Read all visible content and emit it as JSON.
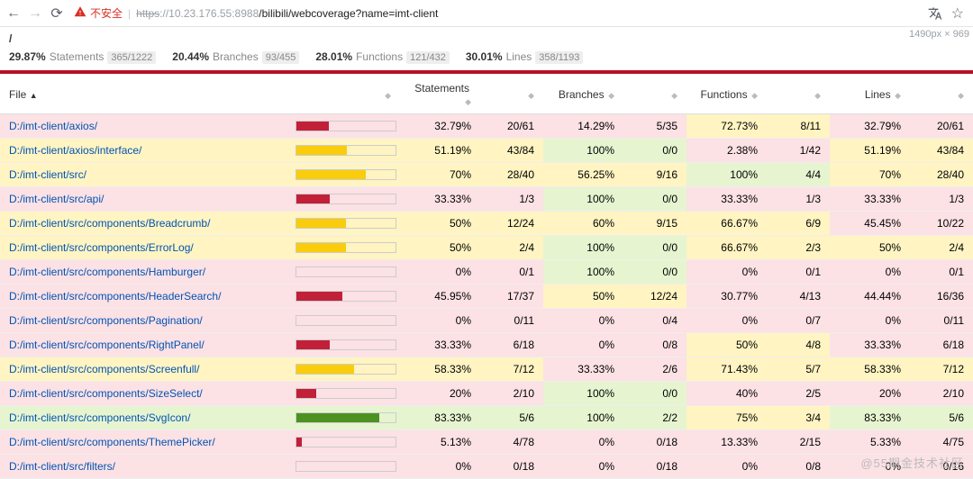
{
  "browser": {
    "warn_label": "不安全",
    "url_strike": "https",
    "url_host": "://10.23.176.55:8988",
    "url_path": "/bilibili/webcoverage?name=imt-client",
    "dims": "1490px × 969"
  },
  "crumb": "/",
  "summary": [
    {
      "pct": "29.87%",
      "label": "Statements",
      "frac": "365/1222"
    },
    {
      "pct": "20.44%",
      "label": "Branches",
      "frac": "93/455"
    },
    {
      "pct": "28.01%",
      "label": "Functions",
      "frac": "121/432"
    },
    {
      "pct": "30.01%",
      "label": "Lines",
      "frac": "358/1193"
    }
  ],
  "headers": {
    "file": "File",
    "st": "Statements",
    "br": "Branches",
    "fn": "Functions",
    "ln": "Lines"
  },
  "thresholds": {
    "med": 50,
    "high": 80
  },
  "rows": [
    {
      "file": "D:/imt-client/axios/",
      "st_pct": 32.79,
      "st": "20/61",
      "br_pct": 14.29,
      "br": "5/35",
      "fn_pct": 72.73,
      "fn": "8/11",
      "ln_pct": 32.79,
      "ln": "20/61"
    },
    {
      "file": "D:/imt-client/axios/interface/",
      "st_pct": 51.19,
      "st": "43/84",
      "br_pct": 100,
      "br": "0/0",
      "fn_pct": 2.38,
      "fn": "1/42",
      "ln_pct": 51.19,
      "ln": "43/84"
    },
    {
      "file": "D:/imt-client/src/",
      "st_pct": 70,
      "st": "28/40",
      "br_pct": 56.25,
      "br": "9/16",
      "fn_pct": 100,
      "fn": "4/4",
      "ln_pct": 70,
      "ln": "28/40"
    },
    {
      "file": "D:/imt-client/src/api/",
      "st_pct": 33.33,
      "st": "1/3",
      "br_pct": 100,
      "br": "0/0",
      "fn_pct": 33.33,
      "fn": "1/3",
      "ln_pct": 33.33,
      "ln": "1/3"
    },
    {
      "file": "D:/imt-client/src/components/Breadcrumb/",
      "st_pct": 50,
      "st": "12/24",
      "br_pct": 60,
      "br": "9/15",
      "fn_pct": 66.67,
      "fn": "6/9",
      "ln_pct": 45.45,
      "ln": "10/22"
    },
    {
      "file": "D:/imt-client/src/components/ErrorLog/",
      "st_pct": 50,
      "st": "2/4",
      "br_pct": 100,
      "br": "0/0",
      "fn_pct": 66.67,
      "fn": "2/3",
      "ln_pct": 50,
      "ln": "2/4"
    },
    {
      "file": "D:/imt-client/src/components/Hamburger/",
      "st_pct": 0,
      "st": "0/1",
      "br_pct": 100,
      "br": "0/0",
      "fn_pct": 0,
      "fn": "0/1",
      "ln_pct": 0,
      "ln": "0/1"
    },
    {
      "file": "D:/imt-client/src/components/HeaderSearch/",
      "st_pct": 45.95,
      "st": "17/37",
      "br_pct": 50,
      "br": "12/24",
      "fn_pct": 30.77,
      "fn": "4/13",
      "ln_pct": 44.44,
      "ln": "16/36"
    },
    {
      "file": "D:/imt-client/src/components/Pagination/",
      "st_pct": 0,
      "st": "0/11",
      "br_pct": 0,
      "br": "0/4",
      "fn_pct": 0,
      "fn": "0/7",
      "ln_pct": 0,
      "ln": "0/11"
    },
    {
      "file": "D:/imt-client/src/components/RightPanel/",
      "st_pct": 33.33,
      "st": "6/18",
      "br_pct": 0,
      "br": "0/8",
      "fn_pct": 50,
      "fn": "4/8",
      "ln_pct": 33.33,
      "ln": "6/18"
    },
    {
      "file": "D:/imt-client/src/components/Screenfull/",
      "st_pct": 58.33,
      "st": "7/12",
      "br_pct": 33.33,
      "br": "2/6",
      "fn_pct": 71.43,
      "fn": "5/7",
      "ln_pct": 58.33,
      "ln": "7/12"
    },
    {
      "file": "D:/imt-client/src/components/SizeSelect/",
      "st_pct": 20,
      "st": "2/10",
      "br_pct": 100,
      "br": "0/0",
      "fn_pct": 40,
      "fn": "2/5",
      "ln_pct": 20,
      "ln": "2/10"
    },
    {
      "file": "D:/imt-client/src/components/SvgIcon/",
      "st_pct": 83.33,
      "st": "5/6",
      "br_pct": 100,
      "br": "2/2",
      "fn_pct": 75,
      "fn": "3/4",
      "ln_pct": 83.33,
      "ln": "5/6"
    },
    {
      "file": "D:/imt-client/src/components/ThemePicker/",
      "st_pct": 5.13,
      "st": "4/78",
      "br_pct": 0,
      "br": "0/18",
      "fn_pct": 13.33,
      "fn": "2/15",
      "ln_pct": 5.33,
      "ln": "4/75"
    },
    {
      "file": "D:/imt-client/src/filters/",
      "st_pct": 0,
      "st": "0/18",
      "br_pct": 0,
      "br": "0/18",
      "fn_pct": 0,
      "fn": "0/8",
      "ln_pct": 0,
      "ln": "0/16"
    }
  ],
  "watermark": "@55期金技术社区"
}
